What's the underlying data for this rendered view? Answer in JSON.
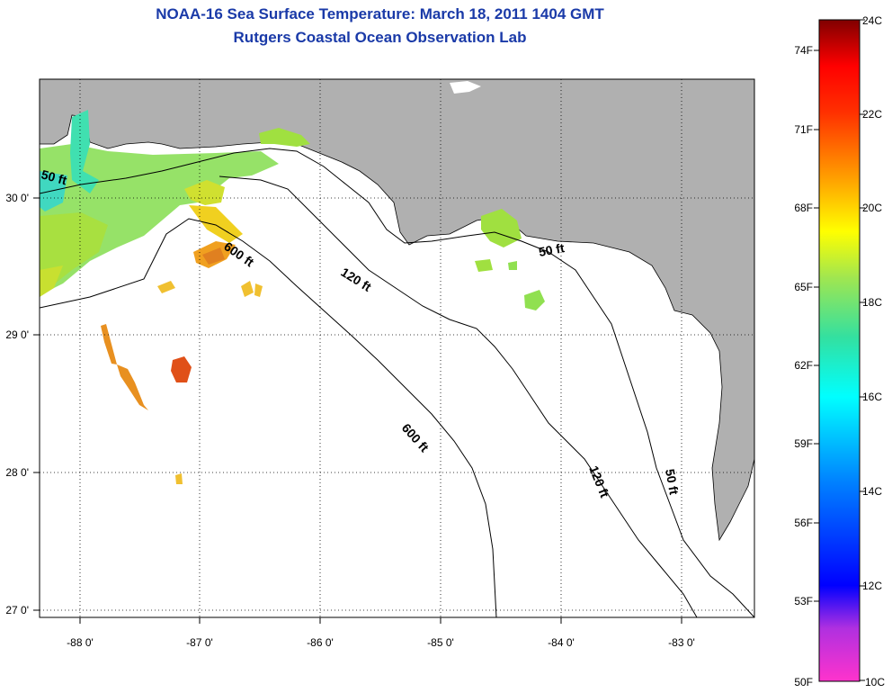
{
  "title": "NOAA-16 Sea Surface Temperature:  March 18, 2011 1404 GMT",
  "subtitle": "Rutgers Coastal Ocean Observation Lab",
  "map": {
    "lon_ticks": [
      "-88 0'",
      "-87 0'",
      "-86 0'",
      "-85 0'",
      "-84 0'",
      "-83 0'"
    ],
    "lat_ticks": [
      "30 0'",
      "29 0'",
      "28 0'",
      "27 0'"
    ],
    "lon_range": [
      -88.35,
      -82.45
    ],
    "lat_range": [
      26.95,
      30.85
    ],
    "land_color": "#b0b0b0",
    "water_color": "#ffffff",
    "contour_labels": {
      "c50_west": "50 ft",
      "c600_a": "600 ft",
      "c120_a": "120 ft",
      "c50_b": "50 ft",
      "c600_b": "600 ft",
      "c120_b": "120 ft",
      "c50_c": "50 ft"
    }
  },
  "colorbar": {
    "fahrenheit_labels": [
      "74F",
      "71F",
      "68F",
      "65F",
      "62F",
      "59F",
      "56F",
      "53F",
      "50F"
    ],
    "celsius_labels": [
      "24C",
      "22C",
      "20C",
      "18C",
      "16C",
      "14C",
      "12C",
      "10C"
    ],
    "range_c": [
      10,
      24
    ],
    "colors": [
      "#ff33cc",
      "#8a2be2",
      "#0000ff",
      "#0080ff",
      "#00ffff",
      "#33e0a0",
      "#99e65c",
      "#ffff00",
      "#ffa000",
      "#ff4000",
      "#ff0000",
      "#8b0000"
    ]
  }
}
